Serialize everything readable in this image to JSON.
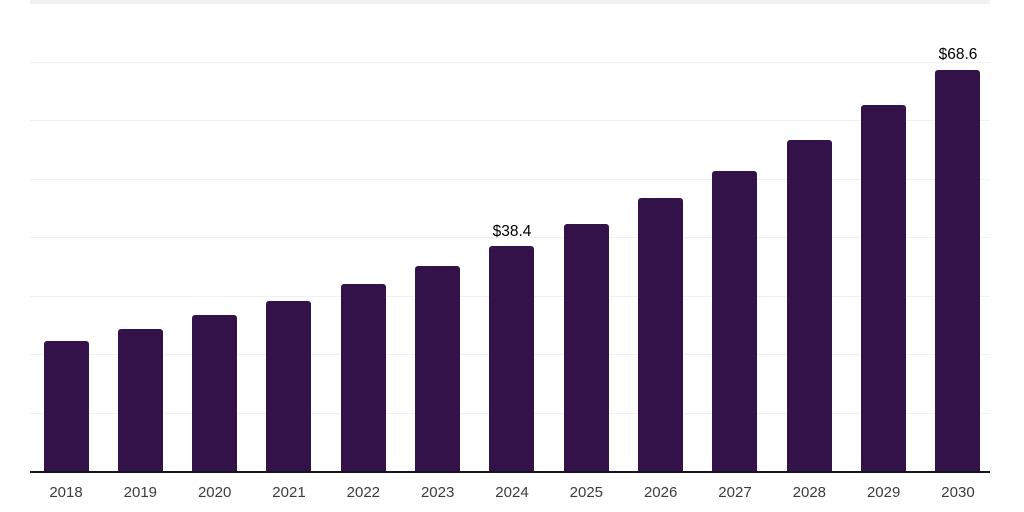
{
  "chart_data": {
    "type": "bar",
    "title": "",
    "xlabel": "",
    "ylabel": "",
    "categories": [
      "2018",
      "2019",
      "2020",
      "2021",
      "2022",
      "2023",
      "2024",
      "2025",
      "2026",
      "2027",
      "2028",
      "2029",
      "2030"
    ],
    "values": [
      22.3,
      24.3,
      26.6,
      29.1,
      31.9,
      35.1,
      38.4,
      42.3,
      46.6,
      51.3,
      56.6,
      62.5,
      68.6
    ],
    "value_labels": [
      "",
      "",
      "",
      "",
      "",
      "",
      "$38.4",
      "",
      "",
      "",
      "",
      "",
      "$68.6"
    ],
    "ylim": [
      0,
      80
    ],
    "gridline_interval": 10,
    "grid": true,
    "legend_position": "none",
    "labeled_points": [
      {
        "category": "2024",
        "label": "$38.4"
      },
      {
        "category": "2030",
        "label": "$68.6"
      }
    ],
    "colors": {
      "bar": "#33124a",
      "grid": "#f1f1f4",
      "axis_line": "#18141f",
      "tick_label": "#3c3c3c",
      "data_label": "#000000",
      "background": "#ffffff"
    }
  }
}
